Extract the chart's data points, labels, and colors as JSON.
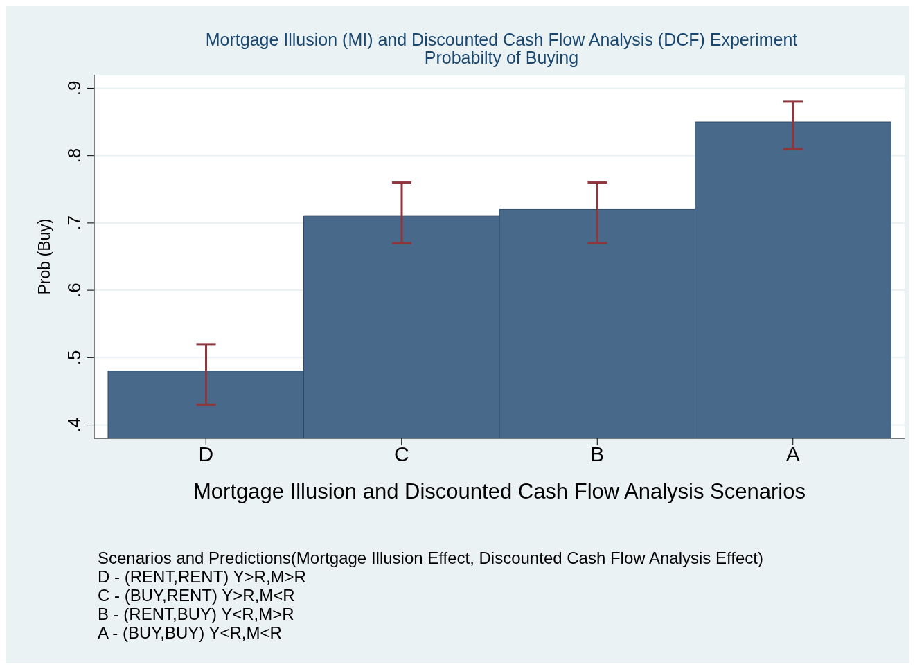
{
  "chart_data": {
    "type": "bar",
    "title": "Mortgage Illusion (MI) and Discounted Cash Flow Analysis (DCF) Experiment",
    "subtitle": "Probabilty of Buying",
    "xlabel": "Mortgage Illusion and Discounted Cash Flow Analysis Scenarios",
    "ylabel": "Prob (Buy)",
    "categories": [
      "D",
      "C",
      "B",
      "A"
    ],
    "values": [
      0.48,
      0.71,
      0.72,
      0.85
    ],
    "errors": [
      [
        0.43,
        0.52
      ],
      [
        0.67,
        0.76
      ],
      [
        0.67,
        0.76
      ],
      [
        0.81,
        0.88
      ]
    ],
    "color": "#48698a",
    "ylim": [
      0.38,
      0.92
    ],
    "yticks": [
      {
        "value": 0.4,
        "label": ".4"
      },
      {
        "value": 0.5,
        "label": ".5"
      },
      {
        "value": 0.6,
        "label": ".6"
      },
      {
        "value": 0.7,
        "label": ".7"
      },
      {
        "value": 0.8,
        "label": ".8"
      },
      {
        "value": 0.9,
        "label": ".9"
      }
    ],
    "grid": "y",
    "legend": false,
    "annotations": [
      "Scenarios and Predictions(Mortgage Illusion Effect, Discounted Cash Flow Analysis Effect)",
      "D - (RENT,RENT) Y>R,M>R",
      "C - (BUY,RENT) Y>R,M<R",
      "B - (RENT,BUY) Y<R,M>R",
      "A - (BUY,BUY) Y<R,M<R"
    ]
  }
}
